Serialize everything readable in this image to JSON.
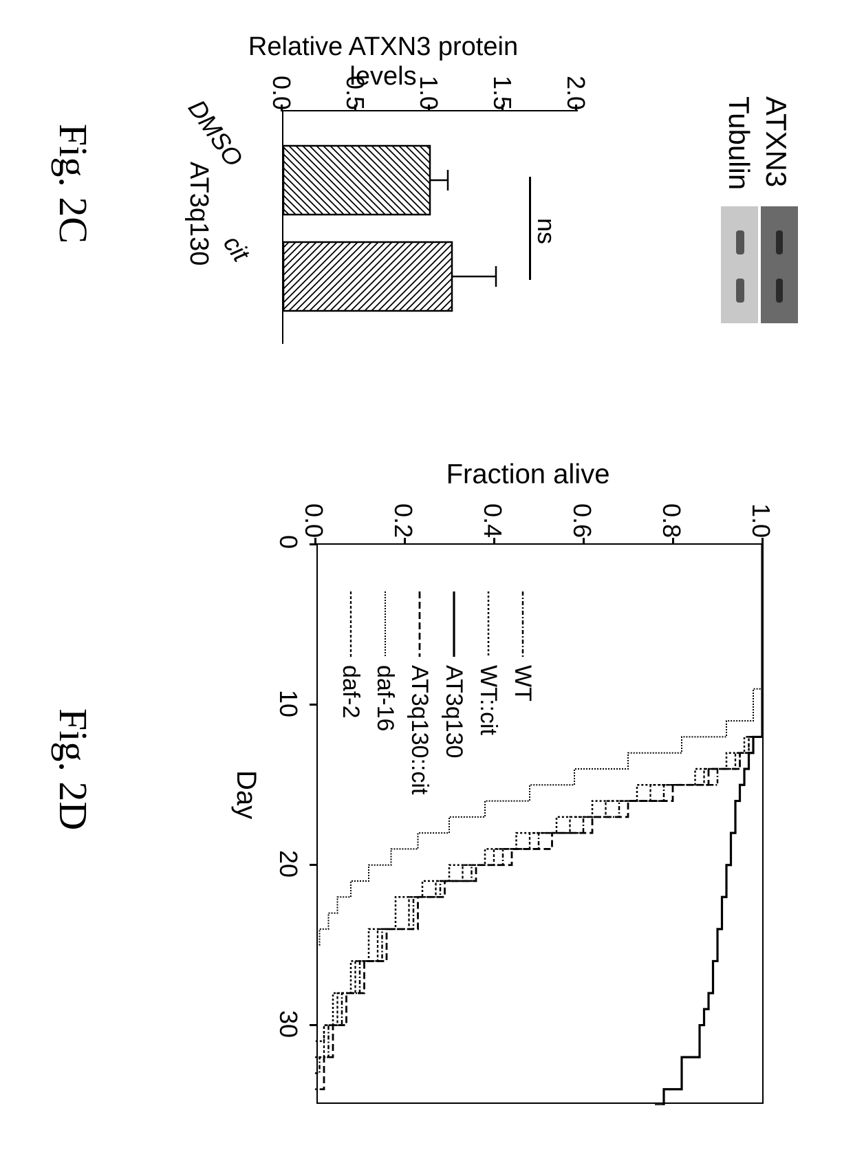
{
  "fig2c": {
    "label": "Fig. 2C",
    "blot": {
      "atxn3_label": "ATXN3",
      "tubulin_label": "Tubulin",
      "atxn3_bg": "#6a6a6a",
      "tubulin_bg": "#c8c8c8"
    },
    "barChart": {
      "ylabel": "Relative ATXN3 protein levels",
      "yticks": [
        "0.0",
        "0.5",
        "1.0",
        "1.5",
        "2.0"
      ],
      "ylim": [
        0,
        2.0
      ],
      "bars": [
        {
          "label": "DMSO",
          "value": 1.0,
          "error": 0.12,
          "hatch": "////"
        },
        {
          "label": "cit",
          "value": 1.15,
          "error": 0.3,
          "hatch": "\\\\\\\\"
        }
      ],
      "ns_text": "ns",
      "group_label": "AT3q130",
      "bar_border": "#000000",
      "bar_fill": "#ffffff"
    }
  },
  "fig2d": {
    "label": "Fig. 2D",
    "chart": {
      "ylabel": "Fraction alive",
      "xlabel": "Day",
      "ylim": [
        0,
        1.0
      ],
      "xlim": [
        0,
        35
      ],
      "yticks": [
        "0.0",
        "0.2",
        "0.4",
        "0.6",
        "0.8",
        "1.0"
      ],
      "xticks": [
        "0",
        "10",
        "20",
        "30"
      ],
      "axis_color": "#000000",
      "background": "#ffffff",
      "series": [
        {
          "name": "WT",
          "dash": "6,3,2,3",
          "width": 2.5,
          "color": "#000000",
          "points": [
            [
              0,
              1
            ],
            [
              10,
              1
            ],
            [
              12,
              0.97
            ],
            [
              13,
              0.95
            ],
            [
              14,
              0.9
            ],
            [
              15,
              0.78
            ],
            [
              16,
              0.68
            ],
            [
              17,
              0.6
            ],
            [
              18,
              0.5
            ],
            [
              19,
              0.42
            ],
            [
              20,
              0.35
            ],
            [
              21,
              0.28
            ],
            [
              22,
              0.22
            ],
            [
              24,
              0.15
            ],
            [
              26,
              0.1
            ],
            [
              28,
              0.06
            ],
            [
              30,
              0.03
            ],
            [
              32,
              0.01
            ],
            [
              33,
              0
            ]
          ]
        },
        {
          "name": "WT::cit",
          "dash": "3,3",
          "width": 2.5,
          "color": "#000000",
          "points": [
            [
              0,
              1
            ],
            [
              10,
              1
            ],
            [
              12,
              0.96
            ],
            [
              13,
              0.92
            ],
            [
              14,
              0.85
            ],
            [
              15,
              0.72
            ],
            [
              16,
              0.62
            ],
            [
              17,
              0.54
            ],
            [
              18,
              0.45
            ],
            [
              19,
              0.38
            ],
            [
              20,
              0.3
            ],
            [
              21,
              0.24
            ],
            [
              22,
              0.18
            ],
            [
              24,
              0.12
            ],
            [
              26,
              0.08
            ],
            [
              28,
              0.04
            ],
            [
              30,
              0.02
            ],
            [
              31,
              0
            ]
          ]
        },
        {
          "name": "AT3q130",
          "dash": "none",
          "width": 3.2,
          "color": "#000000",
          "points": [
            [
              0,
              1
            ],
            [
              10,
              1
            ],
            [
              12,
              0.98
            ],
            [
              13,
              0.97
            ],
            [
              14,
              0.96
            ],
            [
              15,
              0.95
            ],
            [
              16,
              0.94
            ],
            [
              18,
              0.93
            ],
            [
              20,
              0.92
            ],
            [
              22,
              0.91
            ],
            [
              24,
              0.9
            ],
            [
              26,
              0.89
            ],
            [
              28,
              0.88
            ],
            [
              29,
              0.87
            ],
            [
              30,
              0.86
            ],
            [
              32,
              0.82
            ],
            [
              34,
              0.78
            ],
            [
              35,
              0.76
            ]
          ]
        },
        {
          "name": "AT3q130::cit",
          "dash": "10,5",
          "width": 2.8,
          "color": "#000000",
          "points": [
            [
              0,
              1
            ],
            [
              10,
              1
            ],
            [
              12,
              0.98
            ],
            [
              13,
              0.95
            ],
            [
              14,
              0.88
            ],
            [
              15,
              0.8
            ],
            [
              16,
              0.7
            ],
            [
              17,
              0.62
            ],
            [
              18,
              0.53
            ],
            [
              19,
              0.44
            ],
            [
              20,
              0.36
            ],
            [
              21,
              0.29
            ],
            [
              22,
              0.23
            ],
            [
              24,
              0.16
            ],
            [
              26,
              0.11
            ],
            [
              28,
              0.07
            ],
            [
              30,
              0.04
            ],
            [
              32,
              0.02
            ],
            [
              34,
              0
            ]
          ]
        },
        {
          "name": "daf-16",
          "dash": "2,2",
          "width": 2,
          "color": "#000000",
          "points": [
            [
              0,
              1
            ],
            [
              9,
              0.98
            ],
            [
              11,
              0.92
            ],
            [
              12,
              0.82
            ],
            [
              13,
              0.7
            ],
            [
              14,
              0.58
            ],
            [
              15,
              0.48
            ],
            [
              16,
              0.38
            ],
            [
              17,
              0.3
            ],
            [
              18,
              0.23
            ],
            [
              19,
              0.17
            ],
            [
              20,
              0.12
            ],
            [
              21,
              0.08
            ],
            [
              22,
              0.05
            ],
            [
              23,
              0.03
            ],
            [
              24,
              0.01
            ],
            [
              25,
              0
            ]
          ]
        },
        {
          "name": "daf-2",
          "dash": "4,3",
          "width": 2.3,
          "color": "#000000",
          "points": [
            [
              0,
              1
            ],
            [
              10,
              1
            ],
            [
              12,
              0.97
            ],
            [
              13,
              0.94
            ],
            [
              14,
              0.87
            ],
            [
              15,
              0.75
            ],
            [
              16,
              0.65
            ],
            [
              17,
              0.57
            ],
            [
              18,
              0.48
            ],
            [
              19,
              0.4
            ],
            [
              20,
              0.33
            ],
            [
              21,
              0.27
            ],
            [
              22,
              0.21
            ],
            [
              24,
              0.14
            ],
            [
              26,
              0.09
            ],
            [
              28,
              0.05
            ],
            [
              30,
              0.02
            ],
            [
              32,
              0
            ]
          ]
        }
      ]
    }
  }
}
